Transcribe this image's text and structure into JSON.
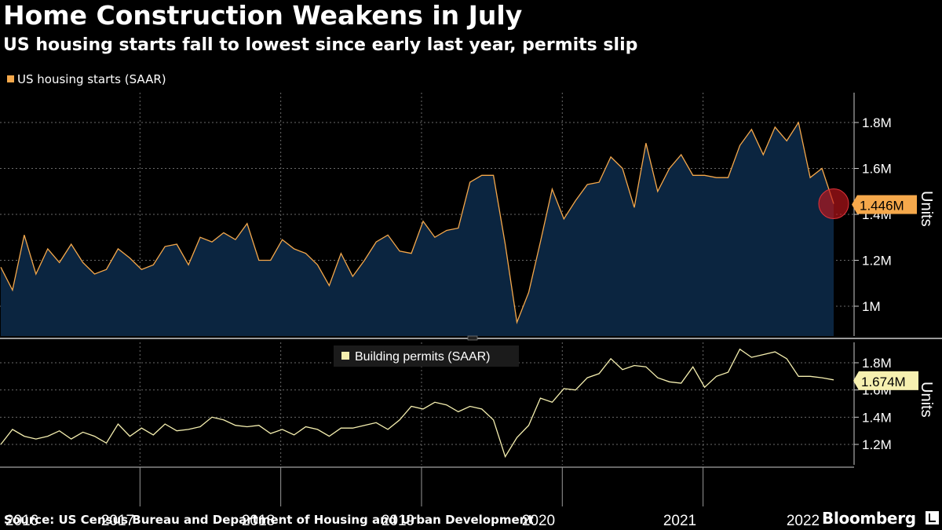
{
  "header": {
    "title": "Home Construction Weakens in July",
    "subtitle": "US housing starts fall to lowest since early last year, permits slip"
  },
  "footer": {
    "source": "Source: US Census Bureau and Department of Housing and Urban Development",
    "brand": "Bloomberg"
  },
  "colors": {
    "starts_line": "#f5a84b",
    "starts_fill": "#0b2540",
    "permits_line": "#f6f0b0",
    "grid": "#6a6a6a",
    "background": "#000000",
    "highlight": "#c0151c"
  },
  "chart_data": [
    {
      "type": "area",
      "title": "US housing starts (SAAR)",
      "ylabel": "Units",
      "ylim": [
        0.87,
        1.93
      ],
      "yticks": [
        1.0,
        1.2,
        1.4,
        1.6,
        1.8
      ],
      "ytick_labels": [
        "1M",
        "1.2M",
        "1.4M",
        "1.6M",
        "1.8M"
      ],
      "last_value_label": "1.446M",
      "x_start": "2016-01",
      "x_end": "2022-07",
      "series": [
        {
          "name": "US housing starts (SAAR)",
          "values": [
            1.17,
            1.07,
            1.31,
            1.14,
            1.25,
            1.19,
            1.27,
            1.19,
            1.14,
            1.16,
            1.25,
            1.21,
            1.16,
            1.18,
            1.26,
            1.27,
            1.18,
            1.3,
            1.28,
            1.32,
            1.29,
            1.36,
            1.2,
            1.2,
            1.29,
            1.25,
            1.23,
            1.18,
            1.09,
            1.23,
            1.13,
            1.2,
            1.28,
            1.31,
            1.24,
            1.23,
            1.37,
            1.3,
            1.33,
            1.34,
            1.54,
            1.57,
            1.57,
            1.27,
            0.93,
            1.06,
            1.28,
            1.51,
            1.38,
            1.46,
            1.53,
            1.54,
            1.65,
            1.6,
            1.43,
            1.71,
            1.5,
            1.6,
            1.66,
            1.57,
            1.57,
            1.56,
            1.56,
            1.7,
            1.77,
            1.66,
            1.78,
            1.72,
            1.8,
            1.56,
            1.6,
            1.446
          ]
        }
      ]
    },
    {
      "type": "line",
      "title": "Building permits (SAAR)",
      "ylabel": "Units",
      "ylim": [
        1.05,
        1.95
      ],
      "yticks": [
        1.2,
        1.4,
        1.6,
        1.8
      ],
      "ytick_labels": [
        "1.2M",
        "1.4M",
        "1.6M",
        "1.8M"
      ],
      "last_value_label": "1.674M",
      "x_start": "2016-01",
      "x_end": "2022-07",
      "series": [
        {
          "name": "Building permits (SAAR)",
          "values": [
            1.2,
            1.31,
            1.26,
            1.24,
            1.26,
            1.3,
            1.24,
            1.29,
            1.26,
            1.21,
            1.35,
            1.26,
            1.32,
            1.27,
            1.35,
            1.3,
            1.31,
            1.33,
            1.4,
            1.38,
            1.34,
            1.33,
            1.34,
            1.28,
            1.31,
            1.27,
            1.33,
            1.31,
            1.26,
            1.32,
            1.32,
            1.34,
            1.36,
            1.31,
            1.38,
            1.48,
            1.46,
            1.51,
            1.49,
            1.44,
            1.48,
            1.46,
            1.38,
            1.11,
            1.25,
            1.34,
            1.54,
            1.51,
            1.61,
            1.6,
            1.69,
            1.72,
            1.83,
            1.75,
            1.78,
            1.77,
            1.69,
            1.66,
            1.65,
            1.77,
            1.62,
            1.7,
            1.73,
            1.9,
            1.84,
            1.86,
            1.88,
            1.83,
            1.7,
            1.7,
            1.69,
            1.674
          ]
        }
      ]
    }
  ],
  "x_axis": {
    "year_labels": [
      "2016",
      "2017",
      "2018",
      "2019",
      "2020",
      "2021",
      "2022"
    ]
  }
}
